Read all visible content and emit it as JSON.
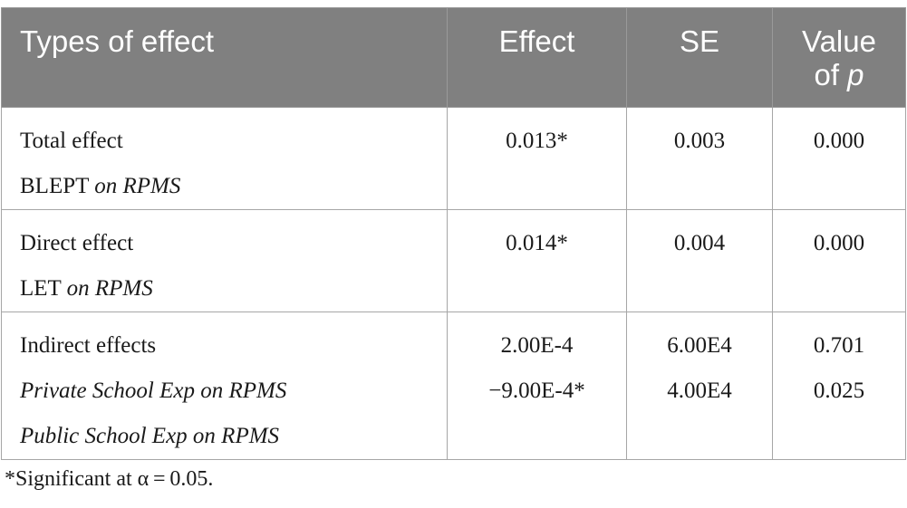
{
  "table": {
    "headers": {
      "type": "Types of effect",
      "effect": "Effect",
      "se": "SE",
      "value_line1": "Value",
      "value_line2_prefix": "of ",
      "value_line2_italic": "p"
    },
    "rows": [
      {
        "label": "Total effect",
        "sub_plain": "BLEPT ",
        "sub_italic": "on RPMS",
        "effect": [
          "0.013*"
        ],
        "se": [
          "0.003"
        ],
        "p": [
          "0.000"
        ]
      },
      {
        "label": "Direct effect",
        "sub_plain": "LET ",
        "sub_italic": "on RPMS",
        "effect": [
          "0.014*"
        ],
        "se": [
          "0.004"
        ],
        "p": [
          "0.000"
        ]
      },
      {
        "label": "Indirect effects",
        "sub_lines": [
          "Private School Exp on RPMS",
          "Public School Exp on RPMS"
        ],
        "effect": [
          "2.00E-4",
          "−9.00E-4*"
        ],
        "se": [
          "6.00E4",
          "4.00E4"
        ],
        "p": [
          "0.701",
          "0.025"
        ]
      }
    ]
  },
  "footnote": "*Significant at α = 0.05."
}
